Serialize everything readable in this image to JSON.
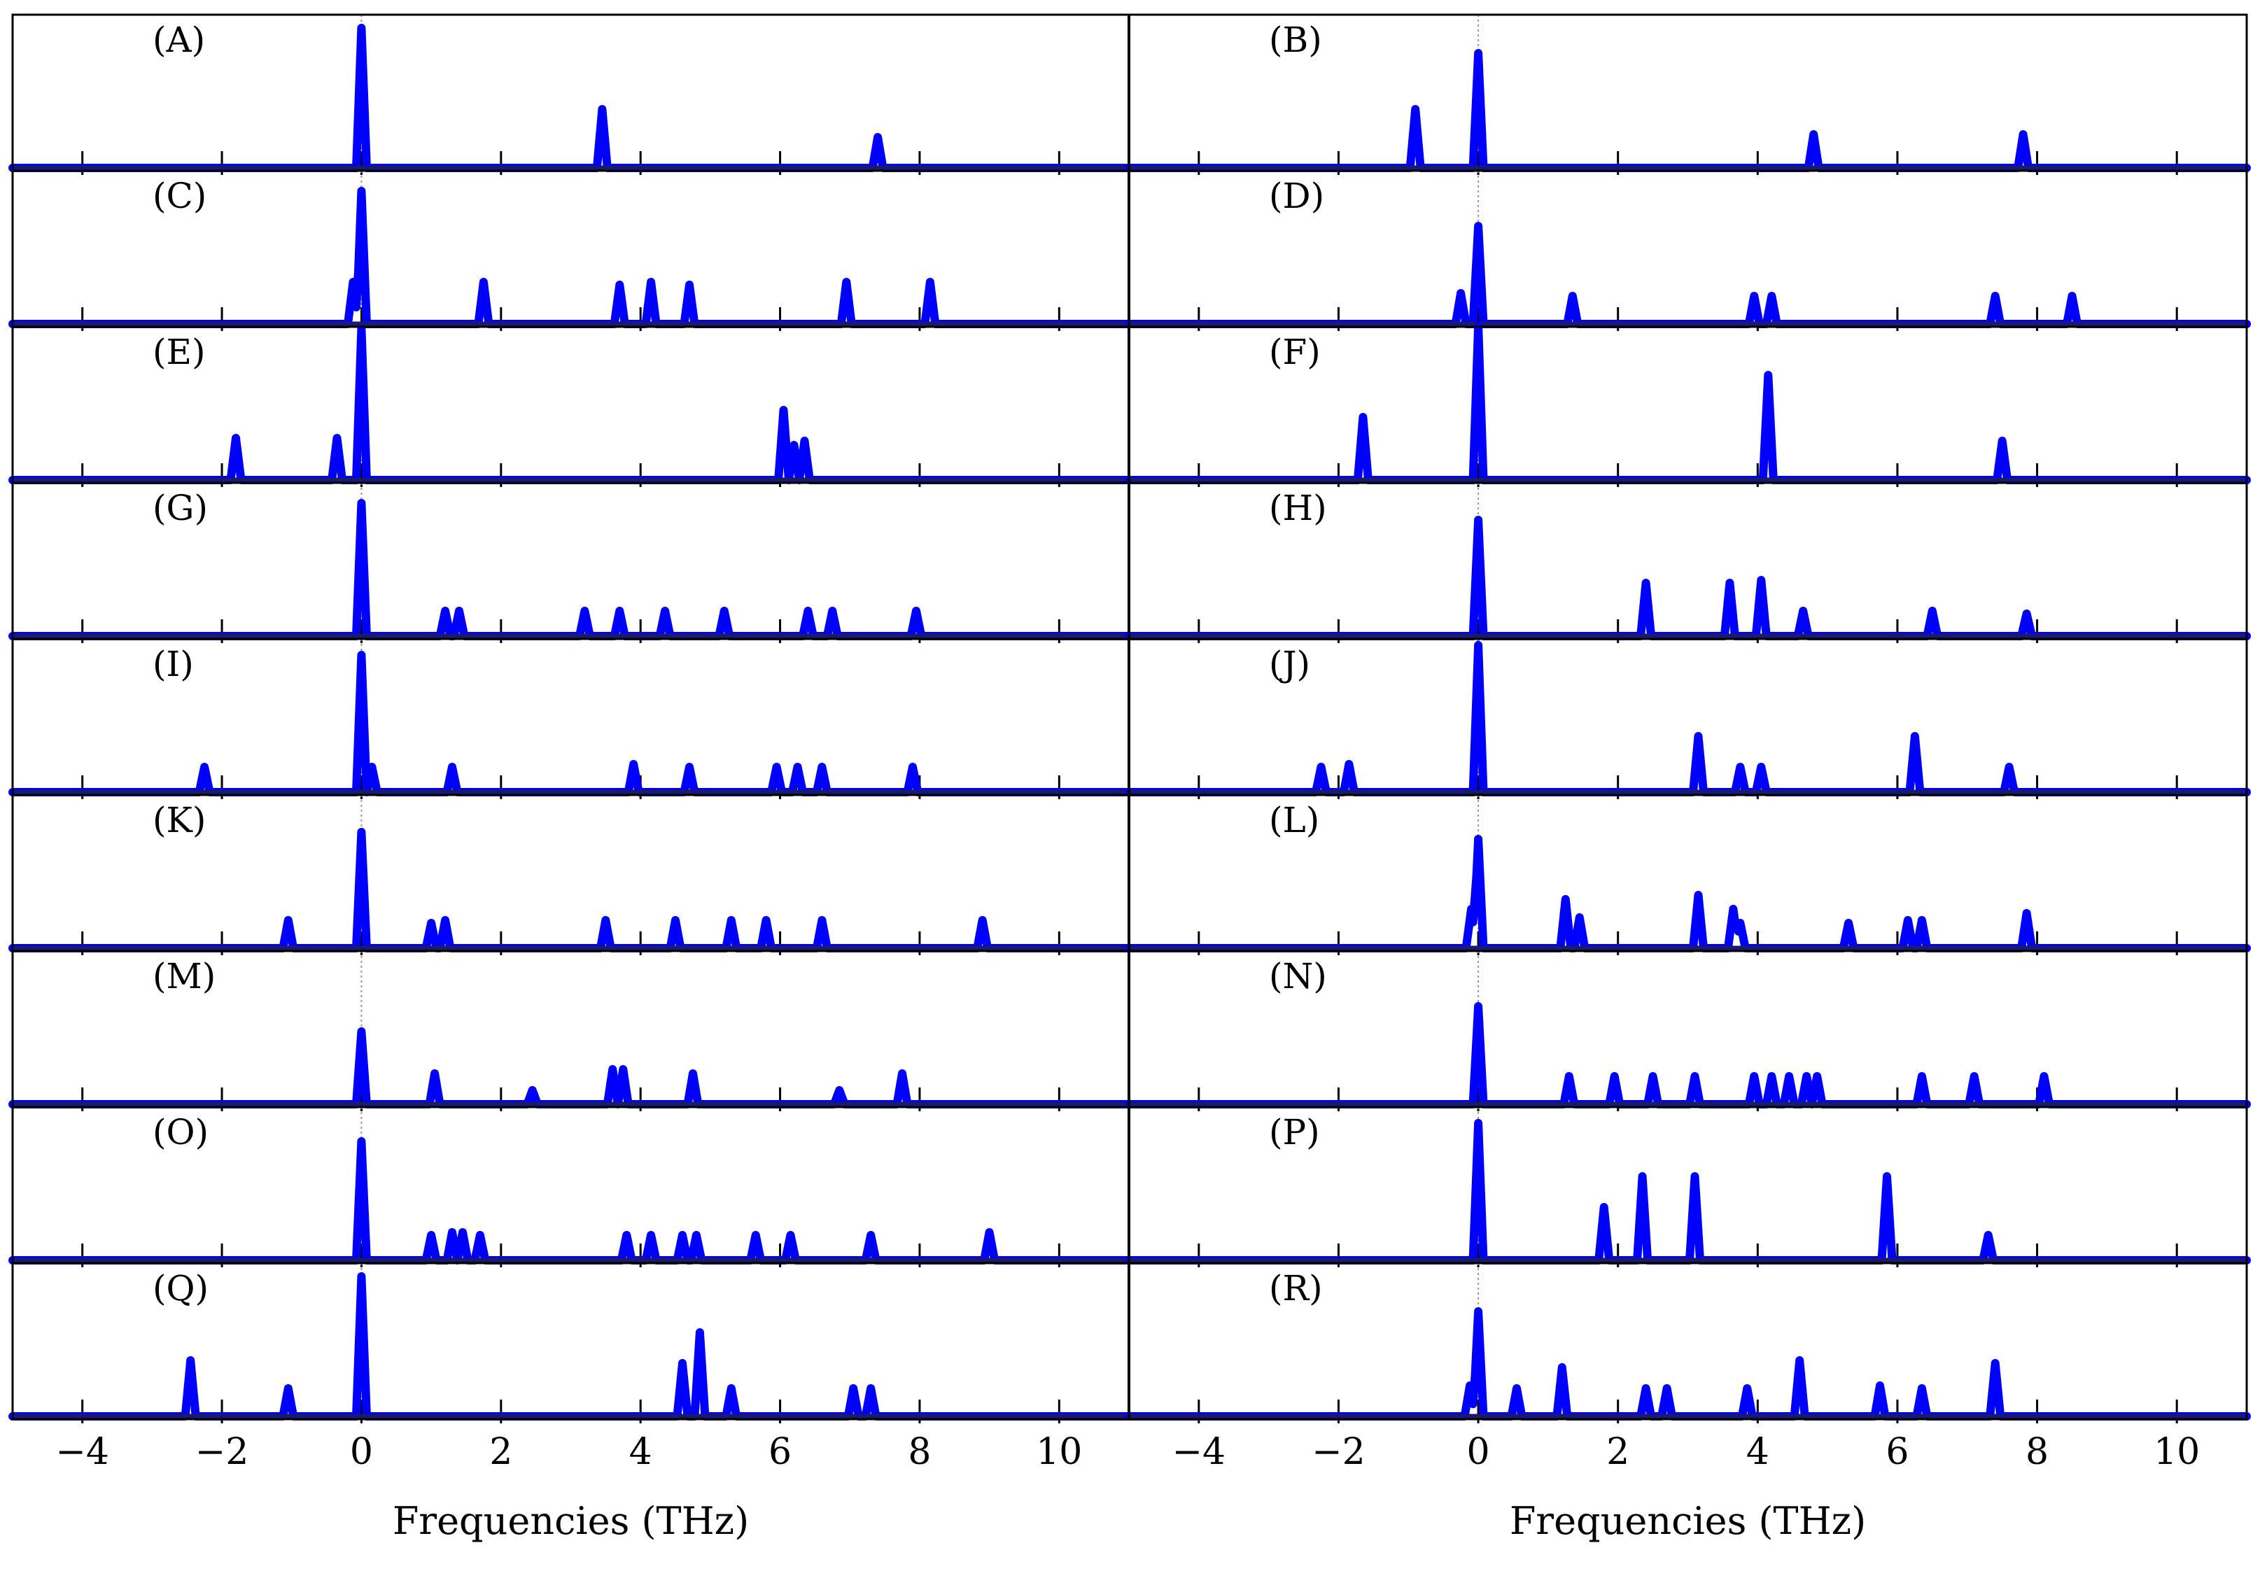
{
  "chart_data": {
    "type": "line",
    "title": "",
    "xlabel": "Frequencies (THz)",
    "ylabel": "",
    "xlim": [
      -5,
      11
    ],
    "xticks": [
      -4,
      -2,
      0,
      2,
      4,
      6,
      8,
      10
    ],
    "xtick_labels": [
      "−4",
      "−2",
      "0",
      "2",
      "4",
      "6",
      "8",
      "10"
    ],
    "zero_line": "dotted vertical line at 0",
    "series_color": "#0000ff",
    "baseline_color": "#1a1a6e",
    "panels": [
      {
        "label": "(A)",
        "peaks": [
          {
            "x": 0.0,
            "h": 1.0
          },
          {
            "x": 3.45,
            "h": 0.42
          },
          {
            "x": 7.4,
            "h": 0.22
          }
        ]
      },
      {
        "label": "(B)",
        "peaks": [
          {
            "x": -0.9,
            "h": 0.42
          },
          {
            "x": 0.0,
            "h": 0.82
          },
          {
            "x": 4.8,
            "h": 0.24
          },
          {
            "x": 7.8,
            "h": 0.24
          }
        ]
      },
      {
        "label": "(C)",
        "peaks": [
          {
            "x": -0.12,
            "h": 0.3
          },
          {
            "x": 0.0,
            "h": 0.95
          },
          {
            "x": 1.75,
            "h": 0.3
          },
          {
            "x": 3.7,
            "h": 0.28
          },
          {
            "x": 4.15,
            "h": 0.3
          },
          {
            "x": 4.7,
            "h": 0.28
          },
          {
            "x": 6.95,
            "h": 0.3
          },
          {
            "x": 8.15,
            "h": 0.3
          }
        ]
      },
      {
        "label": "(D)",
        "peaks": [
          {
            "x": -0.25,
            "h": 0.22
          },
          {
            "x": 0.0,
            "h": 0.7
          },
          {
            "x": 1.35,
            "h": 0.2
          },
          {
            "x": 3.95,
            "h": 0.2
          },
          {
            "x": 4.2,
            "h": 0.2
          },
          {
            "x": 7.4,
            "h": 0.2
          },
          {
            "x": 8.5,
            "h": 0.2
          }
        ]
      },
      {
        "label": "(E)",
        "peaks": [
          {
            "x": -1.8,
            "h": 0.3
          },
          {
            "x": -0.35,
            "h": 0.3
          },
          {
            "x": 0.0,
            "h": 1.08
          },
          {
            "x": 6.05,
            "h": 0.5
          },
          {
            "x": 6.2,
            "h": 0.25
          },
          {
            "x": 6.35,
            "h": 0.28
          }
        ]
      },
      {
        "label": "(F)",
        "peaks": [
          {
            "x": -1.65,
            "h": 0.45
          },
          {
            "x": 0.0,
            "h": 1.1
          },
          {
            "x": 4.15,
            "h": 0.75
          },
          {
            "x": 7.5,
            "h": 0.28
          }
        ]
      },
      {
        "label": "(G)",
        "peaks": [
          {
            "x": 0.0,
            "h": 0.95
          },
          {
            "x": 1.2,
            "h": 0.18
          },
          {
            "x": 1.4,
            "h": 0.18
          },
          {
            "x": 3.2,
            "h": 0.18
          },
          {
            "x": 3.7,
            "h": 0.18
          },
          {
            "x": 4.35,
            "h": 0.18
          },
          {
            "x": 5.2,
            "h": 0.18
          },
          {
            "x": 6.4,
            "h": 0.18
          },
          {
            "x": 6.75,
            "h": 0.18
          },
          {
            "x": 7.95,
            "h": 0.18
          }
        ]
      },
      {
        "label": "(H)",
        "peaks": [
          {
            "x": 0.0,
            "h": 0.83
          },
          {
            "x": 2.4,
            "h": 0.38
          },
          {
            "x": 3.6,
            "h": 0.38
          },
          {
            "x": 4.05,
            "h": 0.4
          },
          {
            "x": 4.65,
            "h": 0.18
          },
          {
            "x": 6.5,
            "h": 0.18
          },
          {
            "x": 7.85,
            "h": 0.16
          }
        ]
      },
      {
        "label": "(I)",
        "peaks": [
          {
            "x": -2.25,
            "h": 0.18
          },
          {
            "x": 0.0,
            "h": 0.98
          },
          {
            "x": 0.15,
            "h": 0.18
          },
          {
            "x": 1.3,
            "h": 0.18
          },
          {
            "x": 3.9,
            "h": 0.2
          },
          {
            "x": 4.7,
            "h": 0.18
          },
          {
            "x": 5.95,
            "h": 0.18
          },
          {
            "x": 6.25,
            "h": 0.18
          },
          {
            "x": 6.6,
            "h": 0.18
          },
          {
            "x": 7.9,
            "h": 0.18
          }
        ]
      },
      {
        "label": "(J)",
        "peaks": [
          {
            "x": -2.25,
            "h": 0.18
          },
          {
            "x": -1.85,
            "h": 0.2
          },
          {
            "x": 0.0,
            "h": 1.05
          },
          {
            "x": 3.15,
            "h": 0.4
          },
          {
            "x": 3.75,
            "h": 0.18
          },
          {
            "x": 4.05,
            "h": 0.18
          },
          {
            "x": 6.25,
            "h": 0.4
          },
          {
            "x": 7.6,
            "h": 0.18
          }
        ]
      },
      {
        "label": "(K)",
        "peaks": [
          {
            "x": -1.05,
            "h": 0.2
          },
          {
            "x": 0.0,
            "h": 0.83
          },
          {
            "x": 1.0,
            "h": 0.18
          },
          {
            "x": 1.2,
            "h": 0.2
          },
          {
            "x": 3.5,
            "h": 0.2
          },
          {
            "x": 4.5,
            "h": 0.2
          },
          {
            "x": 5.3,
            "h": 0.2
          },
          {
            "x": 5.8,
            "h": 0.2
          },
          {
            "x": 6.6,
            "h": 0.2
          },
          {
            "x": 8.9,
            "h": 0.2
          }
        ]
      },
      {
        "label": "(L)",
        "peaks": [
          {
            "x": -0.1,
            "h": 0.28
          },
          {
            "x": 0.0,
            "h": 0.78
          },
          {
            "x": 1.25,
            "h": 0.35
          },
          {
            "x": 1.45,
            "h": 0.22
          },
          {
            "x": 3.15,
            "h": 0.38
          },
          {
            "x": 3.65,
            "h": 0.28
          },
          {
            "x": 3.75,
            "h": 0.18
          },
          {
            "x": 5.3,
            "h": 0.18
          },
          {
            "x": 6.15,
            "h": 0.2
          },
          {
            "x": 6.35,
            "h": 0.2
          },
          {
            "x": 7.85,
            "h": 0.25
          }
        ]
      },
      {
        "label": "(M)",
        "peaks": [
          {
            "x": 0.0,
            "h": 0.52
          },
          {
            "x": 1.05,
            "h": 0.22
          },
          {
            "x": 2.45,
            "h": 0.1
          },
          {
            "x": 3.6,
            "h": 0.25
          },
          {
            "x": 3.75,
            "h": 0.25
          },
          {
            "x": 4.75,
            "h": 0.22
          },
          {
            "x": 6.85,
            "h": 0.1
          },
          {
            "x": 7.75,
            "h": 0.22
          }
        ]
      },
      {
        "label": "(N)",
        "peaks": [
          {
            "x": 0.0,
            "h": 0.7
          },
          {
            "x": 1.3,
            "h": 0.2
          },
          {
            "x": 1.95,
            "h": 0.2
          },
          {
            "x": 2.5,
            "h": 0.2
          },
          {
            "x": 3.1,
            "h": 0.2
          },
          {
            "x": 3.95,
            "h": 0.2
          },
          {
            "x": 4.2,
            "h": 0.2
          },
          {
            "x": 4.45,
            "h": 0.2
          },
          {
            "x": 4.7,
            "h": 0.2
          },
          {
            "x": 4.85,
            "h": 0.2
          },
          {
            "x": 6.35,
            "h": 0.2
          },
          {
            "x": 7.1,
            "h": 0.2
          },
          {
            "x": 8.1,
            "h": 0.2
          }
        ]
      },
      {
        "label": "(O)",
        "peaks": [
          {
            "x": 0.0,
            "h": 0.85
          },
          {
            "x": 1.0,
            "h": 0.18
          },
          {
            "x": 1.3,
            "h": 0.2
          },
          {
            "x": 1.45,
            "h": 0.2
          },
          {
            "x": 1.7,
            "h": 0.18
          },
          {
            "x": 3.8,
            "h": 0.18
          },
          {
            "x": 4.15,
            "h": 0.18
          },
          {
            "x": 4.6,
            "h": 0.18
          },
          {
            "x": 4.8,
            "h": 0.18
          },
          {
            "x": 5.65,
            "h": 0.18
          },
          {
            "x": 6.15,
            "h": 0.18
          },
          {
            "x": 7.3,
            "h": 0.18
          },
          {
            "x": 9.0,
            "h": 0.2
          }
        ]
      },
      {
        "label": "(P)",
        "peaks": [
          {
            "x": 0.0,
            "h": 0.98
          },
          {
            "x": 1.8,
            "h": 0.38
          },
          {
            "x": 2.35,
            "h": 0.6
          },
          {
            "x": 3.1,
            "h": 0.6
          },
          {
            "x": 5.85,
            "h": 0.6
          },
          {
            "x": 7.3,
            "h": 0.18
          }
        ]
      },
      {
        "label": "(Q)",
        "peaks": [
          {
            "x": -2.45,
            "h": 0.4
          },
          {
            "x": -1.05,
            "h": 0.2
          },
          {
            "x": 0.0,
            "h": 1.0
          },
          {
            "x": 4.6,
            "h": 0.38
          },
          {
            "x": 4.85,
            "h": 0.6
          },
          {
            "x": 5.3,
            "h": 0.2
          },
          {
            "x": 7.05,
            "h": 0.2
          },
          {
            "x": 7.3,
            "h": 0.2
          }
        ]
      },
      {
        "label": "(R)",
        "peaks": [
          {
            "x": -0.12,
            "h": 0.22
          },
          {
            "x": 0.0,
            "h": 0.75
          },
          {
            "x": 0.55,
            "h": 0.2
          },
          {
            "x": 1.2,
            "h": 0.35
          },
          {
            "x": 2.4,
            "h": 0.2
          },
          {
            "x": 2.7,
            "h": 0.2
          },
          {
            "x": 3.85,
            "h": 0.2
          },
          {
            "x": 4.6,
            "h": 0.4
          },
          {
            "x": 5.75,
            "h": 0.22
          },
          {
            "x": 6.35,
            "h": 0.2
          },
          {
            "x": 7.4,
            "h": 0.38
          }
        ]
      }
    ]
  }
}
